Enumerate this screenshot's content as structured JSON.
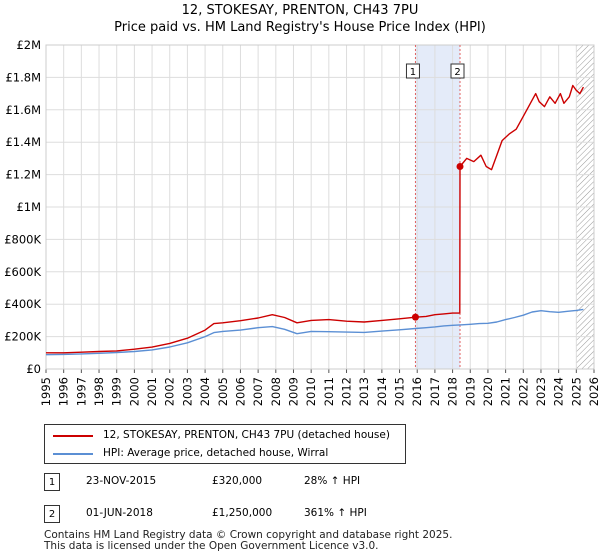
{
  "title": "12, STOKESAY, PRENTON, CH43 7PU",
  "subtitle": "Price paid vs. HM Land Registry's House Price Index (HPI)",
  "chart_data": {
    "type": "line",
    "ylim": [
      0,
      2000000
    ],
    "xlim": [
      1995,
      2026
    ],
    "y_ticks": [
      0,
      200000,
      400000,
      600000,
      800000,
      1000000,
      1200000,
      1400000,
      1600000,
      1800000,
      2000000
    ],
    "y_tick_labels": [
      "£0",
      "£200K",
      "£400K",
      "£600K",
      "£800K",
      "£1M",
      "£1.2M",
      "£1.4M",
      "£1.6M",
      "£1.8M",
      "£2M"
    ],
    "x_ticks": [
      "1995",
      "1996",
      "1997",
      "1998",
      "1999",
      "2000",
      "2001",
      "2002",
      "2003",
      "2004",
      "2005",
      "2006",
      "2007",
      "2008",
      "2009",
      "2010",
      "2011",
      "2012",
      "2013",
      "2014",
      "2015",
      "2016",
      "2017",
      "2018",
      "2019",
      "2020",
      "2021",
      "2022",
      "2023",
      "2024",
      "2025",
      "2026"
    ],
    "grid": true,
    "shaded_period": [
      2015.9,
      2018.42
    ],
    "hatched_after": 2025.0,
    "series": [
      {
        "name": "12, STOKESAY, PRENTON, CH43 7PU (detached house)",
        "color": "#cc0000",
        "points": [
          [
            1995.0,
            100000
          ],
          [
            1996.0,
            100000
          ],
          [
            1997.0,
            104000
          ],
          [
            1998.0,
            108000
          ],
          [
            1999.0,
            112000
          ],
          [
            2000.0,
            122000
          ],
          [
            2001.0,
            135000
          ],
          [
            2002.0,
            158000
          ],
          [
            2003.0,
            190000
          ],
          [
            2004.0,
            240000
          ],
          [
            2004.5,
            280000
          ],
          [
            2005.0,
            285000
          ],
          [
            2006.0,
            298000
          ],
          [
            2007.0,
            315000
          ],
          [
            2007.8,
            335000
          ],
          [
            2008.5,
            318000
          ],
          [
            2009.2,
            285000
          ],
          [
            2010.0,
            300000
          ],
          [
            2011.0,
            305000
          ],
          [
            2012.0,
            295000
          ],
          [
            2013.0,
            290000
          ],
          [
            2014.0,
            300000
          ],
          [
            2015.0,
            310000
          ],
          [
            2015.9,
            320000
          ],
          [
            2016.5,
            325000
          ],
          [
            2017.0,
            335000
          ],
          [
            2017.5,
            340000
          ],
          [
            2018.0,
            345000
          ],
          [
            2018.41,
            345000
          ],
          [
            2018.42,
            1250000
          ],
          [
            2018.8,
            1300000
          ],
          [
            2019.2,
            1280000
          ],
          [
            2019.6,
            1320000
          ],
          [
            2019.9,
            1250000
          ],
          [
            2020.2,
            1230000
          ],
          [
            2020.5,
            1320000
          ],
          [
            2020.8,
            1410000
          ],
          [
            2021.2,
            1450000
          ],
          [
            2021.6,
            1480000
          ],
          [
            2022.0,
            1560000
          ],
          [
            2022.4,
            1640000
          ],
          [
            2022.7,
            1700000
          ],
          [
            2022.9,
            1650000
          ],
          [
            2023.2,
            1620000
          ],
          [
            2023.5,
            1680000
          ],
          [
            2023.8,
            1640000
          ],
          [
            2024.1,
            1700000
          ],
          [
            2024.3,
            1640000
          ],
          [
            2024.6,
            1680000
          ],
          [
            2024.8,
            1750000
          ],
          [
            2025.0,
            1720000
          ],
          [
            2025.2,
            1700000
          ],
          [
            2025.4,
            1740000
          ]
        ]
      },
      {
        "name": "HPI: Average price, detached house, Wirral",
        "color": "#5b8fd4",
        "points": [
          [
            1995.0,
            88000
          ],
          [
            1996.0,
            90000
          ],
          [
            1997.0,
            93000
          ],
          [
            1998.0,
            97000
          ],
          [
            1999.0,
            102000
          ],
          [
            2000.0,
            108000
          ],
          [
            2001.0,
            118000
          ],
          [
            2002.0,
            136000
          ],
          [
            2003.0,
            162000
          ],
          [
            2004.0,
            200000
          ],
          [
            2004.5,
            225000
          ],
          [
            2005.0,
            232000
          ],
          [
            2006.0,
            240000
          ],
          [
            2007.0,
            255000
          ],
          [
            2007.8,
            262000
          ],
          [
            2008.5,
            245000
          ],
          [
            2009.2,
            218000
          ],
          [
            2010.0,
            232000
          ],
          [
            2011.0,
            230000
          ],
          [
            2012.0,
            228000
          ],
          [
            2013.0,
            226000
          ],
          [
            2014.0,
            234000
          ],
          [
            2015.0,
            242000
          ],
          [
            2015.9,
            250000
          ],
          [
            2016.5,
            255000
          ],
          [
            2017.0,
            260000
          ],
          [
            2017.5,
            266000
          ],
          [
            2018.0,
            270000
          ],
          [
            2018.42,
            272000
          ],
          [
            2019.0,
            276000
          ],
          [
            2019.5,
            280000
          ],
          [
            2020.0,
            282000
          ],
          [
            2020.5,
            290000
          ],
          [
            2021.0,
            305000
          ],
          [
            2021.5,
            318000
          ],
          [
            2022.0,
            332000
          ],
          [
            2022.5,
            352000
          ],
          [
            2023.0,
            360000
          ],
          [
            2023.5,
            354000
          ],
          [
            2024.0,
            350000
          ],
          [
            2024.5,
            356000
          ],
          [
            2025.0,
            362000
          ],
          [
            2025.4,
            368000
          ]
        ]
      }
    ],
    "annotations": [
      {
        "label": "1",
        "x": 2015.9,
        "y": 320000
      },
      {
        "label": "2",
        "x": 2018.42,
        "y": 1250000
      }
    ]
  },
  "legend": {
    "items": [
      {
        "label": "12, STOKESAY, PRENTON, CH43 7PU (detached house)",
        "color": "#cc0000"
      },
      {
        "label": "HPI: Average price, detached house, Wirral",
        "color": "#5b8fd4"
      }
    ]
  },
  "sales": [
    {
      "num": "1",
      "date": "23-NOV-2015",
      "price": "£320,000",
      "hpi": "28% ↑ HPI"
    },
    {
      "num": "2",
      "date": "01-JUN-2018",
      "price": "£1,250,000",
      "hpi": "361% ↑ HPI"
    }
  ],
  "footer": {
    "line1": "Contains HM Land Registry data © Crown copyright and database right 2025.",
    "line2": "This data is licensed under the Open Government Licence v3.0."
  }
}
